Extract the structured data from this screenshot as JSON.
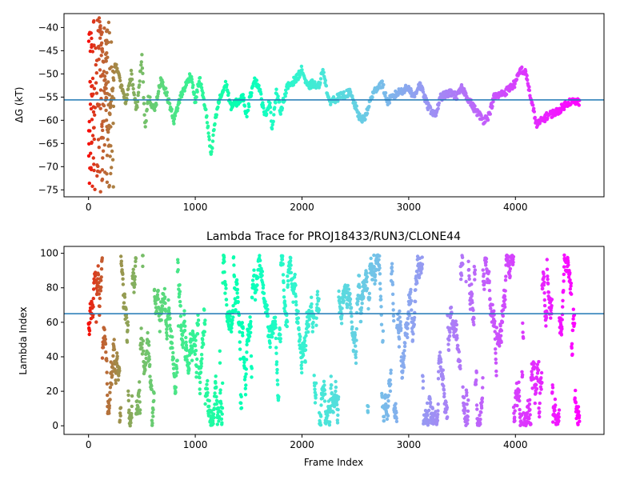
{
  "chart_data": [
    {
      "type": "scatter",
      "title": "",
      "xlabel": "",
      "ylabel": "ΔG (kT)",
      "xlim": [
        -230,
        4830
      ],
      "ylim": [
        -76.5,
        -37
      ],
      "xticks": [
        0,
        1000,
        2000,
        3000,
        4000
      ],
      "yticks": [
        -75,
        -70,
        -65,
        -60,
        -55,
        -50,
        -45,
        -40
      ],
      "colormap": "rainbow",
      "color_by": "lambda_index",
      "marker": "point",
      "reference_line": {
        "y": -55.6,
        "color": "#1f77b4"
      },
      "x_range": [
        0,
        4600
      ],
      "segments": [
        [
          0,
          -40
        ],
        [
          20,
          -50
        ],
        [
          40,
          -57
        ],
        [
          60,
          -47
        ],
        [
          80,
          -44
        ],
        [
          100,
          -38
        ],
        [
          120,
          -42
        ],
        [
          140,
          -48
        ],
        [
          160,
          -56
        ],
        [
          180,
          -64
        ],
        [
          200,
          -58
        ],
        [
          250,
          -48
        ],
        [
          300,
          -52
        ],
        [
          350,
          -56
        ],
        [
          400,
          -50
        ],
        [
          450,
          -58
        ],
        [
          500,
          -46
        ],
        [
          530,
          -62
        ],
        [
          560,
          -55
        ],
        [
          620,
          -58
        ],
        [
          680,
          -51
        ],
        [
          740,
          -55
        ],
        [
          800,
          -60
        ],
        [
          860,
          -55
        ],
        [
          920,
          -52
        ],
        [
          960,
          -50
        ],
        [
          1000,
          -56
        ],
        [
          1040,
          -51
        ],
        [
          1100,
          -58
        ],
        [
          1150,
          -68
        ],
        [
          1180,
          -61
        ],
        [
          1220,
          -56
        ],
        [
          1290,
          -52
        ],
        [
          1330,
          -57
        ],
        [
          1400,
          -56
        ],
        [
          1450,
          -55
        ],
        [
          1480,
          -59
        ],
        [
          1550,
          -51
        ],
        [
          1600,
          -53
        ],
        [
          1650,
          -59
        ],
        [
          1700,
          -56
        ],
        [
          1720,
          -62
        ],
        [
          1760,
          -54
        ],
        [
          1800,
          -58
        ],
        [
          1860,
          -53
        ],
        [
          1900,
          -52
        ],
        [
          1950,
          -51
        ],
        [
          2000,
          -49
        ],
        [
          2050,
          -53
        ],
        [
          2100,
          -52
        ],
        [
          2150,
          -53
        ],
        [
          2200,
          -49
        ],
        [
          2250,
          -56
        ],
        [
          2350,
          -55
        ],
        [
          2450,
          -54
        ],
        [
          2550,
          -60
        ],
        [
          2600,
          -59
        ],
        [
          2650,
          -55
        ],
        [
          2700,
          -53
        ],
        [
          2750,
          -52
        ],
        [
          2800,
          -56
        ],
        [
          2900,
          -54
        ],
        [
          3000,
          -53
        ],
        [
          3050,
          -55
        ],
        [
          3100,
          -52
        ],
        [
          3180,
          -57
        ],
        [
          3250,
          -59
        ],
        [
          3300,
          -55
        ],
        [
          3400,
          -54
        ],
        [
          3450,
          -55
        ],
        [
          3500,
          -53
        ],
        [
          3600,
          -57
        ],
        [
          3700,
          -60
        ],
        [
          3750,
          -59
        ],
        [
          3800,
          -55
        ],
        [
          3900,
          -54
        ],
        [
          4000,
          -52
        ],
        [
          4050,
          -49
        ],
        [
          4100,
          -50
        ],
        [
          4150,
          -56
        ],
        [
          4200,
          -61
        ],
        [
          4300,
          -59
        ],
        [
          4400,
          -58
        ],
        [
          4500,
          -56
        ],
        [
          4600,
          -56
        ]
      ]
    },
    {
      "type": "scatter",
      "title": "Lambda Trace for PROJ18433/RUN3/CLONE44",
      "xlabel": "Frame Index",
      "ylabel": "Lambda Index",
      "xlim": [
        -230,
        4830
      ],
      "ylim": [
        -5,
        104
      ],
      "xticks": [
        0,
        1000,
        2000,
        3000,
        4000
      ],
      "yticks": [
        0,
        20,
        40,
        60,
        80,
        100
      ],
      "colormap": "rainbow",
      "color_by": "frame_index",
      "marker": "point",
      "reference_line": {
        "y": 65,
        "color": "#1f77b4"
      },
      "x_range": [
        0,
        4600
      ],
      "lambda_range": [
        0,
        99
      ]
    }
  ]
}
